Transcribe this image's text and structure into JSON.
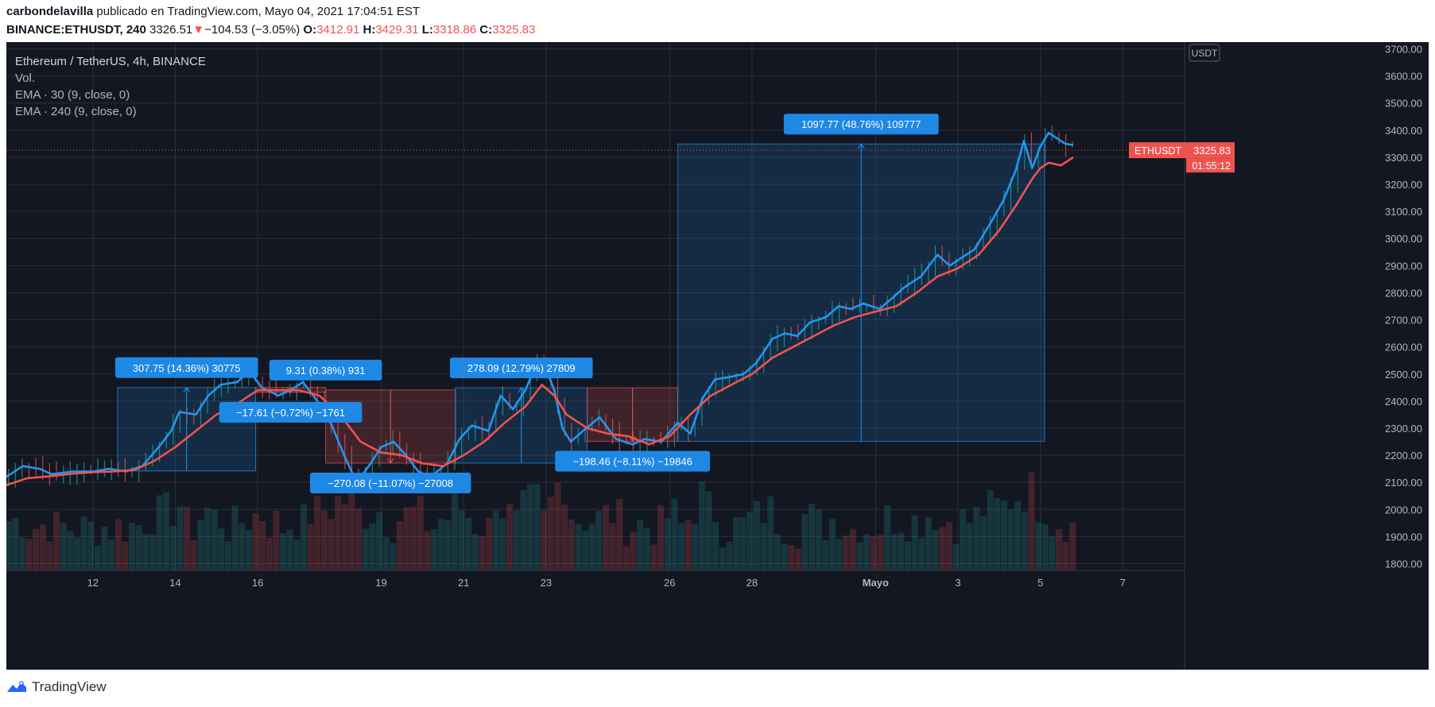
{
  "header": {
    "author": "carbondelavilla",
    "published": "publicado en TradingView.com, Mayo 04, 2021 17:04:51 EST",
    "symbol": "BINANCE:ETHUSDT, 240",
    "last": "3326.51",
    "arrow": "▼",
    "change": "−104.53 (−3.05%)",
    "o_label": "O:",
    "o_val": "3412.91",
    "h_label": "H:",
    "h_val": "3429.31",
    "l_label": "L:",
    "l_val": "3318.86",
    "c_label": "C:",
    "c_val": "3325.83"
  },
  "legend": {
    "title": "Ethereum / TetherUS, 4h, BINANCE",
    "vol": "Vol.",
    "ema1": "EMA · 30 (9, close, 0)",
    "ema2": "EMA · 240 (9, close, 0)"
  },
  "footer": {
    "brand": "TradingView"
  },
  "colors": {
    "background": "#131722",
    "grid": "#2a2e39",
    "text": "#b2b5be",
    "ema_fast": "#2196f3",
    "ema_slow": "#ef5350",
    "up": "#26a69a",
    "down": "#ef5350",
    "range_up": "#2196f3",
    "range_down": "#ef5350",
    "label": "#1e88e5"
  },
  "chart_data": {
    "type": "line",
    "y_range": [
      1775,
      3725
    ],
    "y_ticks": [
      {
        "v": 3700,
        "label": "3700.00"
      },
      {
        "v": 3600,
        "label": "3600.00"
      },
      {
        "v": 3500,
        "label": "3500.00"
      },
      {
        "v": 3400,
        "label": "3400.00"
      },
      {
        "v": 3300,
        "label": "3300.00"
      },
      {
        "v": 3200,
        "label": "3200.00"
      },
      {
        "v": 3100,
        "label": "3100.00"
      },
      {
        "v": 3000,
        "label": "3000.00"
      },
      {
        "v": 2900,
        "label": "2900.00"
      },
      {
        "v": 2800,
        "label": "2800.00"
      },
      {
        "v": 2700,
        "label": "2700.00"
      },
      {
        "v": 2600,
        "label": "2600.00"
      },
      {
        "v": 2500,
        "label": "2500.00"
      },
      {
        "v": 2400,
        "label": "2400.00"
      },
      {
        "v": 2300,
        "label": "2300.00"
      },
      {
        "v": 2200,
        "label": "2200.00"
      },
      {
        "v": 2100,
        "label": "2100.00"
      },
      {
        "v": 2000,
        "label": "2000.00"
      },
      {
        "v": 1900,
        "label": "1900.00"
      },
      {
        "v": 1800,
        "label": "1800.00"
      }
    ],
    "currency": "USDT",
    "x_range": [
      9.9,
      38.5
    ],
    "x_ticks": [
      {
        "d": 12,
        "label": "12"
      },
      {
        "d": 14,
        "label": "14"
      },
      {
        "d": 16,
        "label": "16"
      },
      {
        "d": 19,
        "label": "19"
      },
      {
        "d": 21,
        "label": "21"
      },
      {
        "d": 23,
        "label": "23"
      },
      {
        "d": 26,
        "label": "26"
      },
      {
        "d": 28,
        "label": "28"
      },
      {
        "d": 31,
        "label": "Mayo"
      },
      {
        "d": 33,
        "label": "3"
      },
      {
        "d": 35,
        "label": "5"
      },
      {
        "d": 37,
        "label": "7"
      }
    ],
    "price_label": {
      "symbol": "ETHUSDT",
      "price": "3325.83",
      "countdown": "01:55:12",
      "value": 3325.83
    },
    "series": [
      {
        "key": "ema_fast",
        "points": [
          [
            9.9,
            2120
          ],
          [
            10.3,
            2160
          ],
          [
            10.7,
            2150
          ],
          [
            11.0,
            2130
          ],
          [
            11.5,
            2140
          ],
          [
            12.0,
            2140
          ],
          [
            12.4,
            2150
          ],
          [
            12.8,
            2140
          ],
          [
            13.2,
            2160
          ],
          [
            13.6,
            2230
          ],
          [
            13.9,
            2290
          ],
          [
            14.1,
            2360
          ],
          [
            14.5,
            2350
          ],
          [
            14.8,
            2420
          ],
          [
            15.1,
            2460
          ],
          [
            15.5,
            2470
          ],
          [
            15.8,
            2510
          ],
          [
            16.1,
            2450
          ],
          [
            16.5,
            2420
          ],
          [
            16.8,
            2440
          ],
          [
            17.1,
            2470
          ],
          [
            17.5,
            2390
          ],
          [
            17.8,
            2310
          ],
          [
            18.1,
            2200
          ],
          [
            18.4,
            2100
          ],
          [
            18.7,
            2160
          ],
          [
            19.0,
            2230
          ],
          [
            19.3,
            2250
          ],
          [
            19.6,
            2200
          ],
          [
            19.9,
            2140
          ],
          [
            20.2,
            2120
          ],
          [
            20.6,
            2170
          ],
          [
            20.9,
            2260
          ],
          [
            21.2,
            2310
          ],
          [
            21.6,
            2290
          ],
          [
            21.9,
            2420
          ],
          [
            22.2,
            2370
          ],
          [
            22.5,
            2440
          ],
          [
            22.8,
            2550
          ],
          [
            23.0,
            2520
          ],
          [
            23.2,
            2440
          ],
          [
            23.4,
            2300
          ],
          [
            23.6,
            2250
          ],
          [
            23.9,
            2290
          ],
          [
            24.3,
            2340
          ],
          [
            24.7,
            2260
          ],
          [
            25.1,
            2240
          ],
          [
            25.4,
            2260
          ],
          [
            25.8,
            2250
          ],
          [
            26.2,
            2320
          ],
          [
            26.5,
            2280
          ],
          [
            26.8,
            2410
          ],
          [
            27.1,
            2480
          ],
          [
            27.5,
            2490
          ],
          [
            27.8,
            2500
          ],
          [
            28.1,
            2540
          ],
          [
            28.5,
            2630
          ],
          [
            28.8,
            2650
          ],
          [
            29.1,
            2640
          ],
          [
            29.4,
            2690
          ],
          [
            29.8,
            2710
          ],
          [
            30.1,
            2750
          ],
          [
            30.4,
            2740
          ],
          [
            30.7,
            2760
          ],
          [
            31.1,
            2740
          ],
          [
            31.4,
            2780
          ],
          [
            31.7,
            2820
          ],
          [
            32.1,
            2860
          ],
          [
            32.5,
            2940
          ],
          [
            32.8,
            2900
          ],
          [
            33.1,
            2930
          ],
          [
            33.4,
            2960
          ],
          [
            33.8,
            3060
          ],
          [
            34.1,
            3140
          ],
          [
            34.4,
            3250
          ],
          [
            34.6,
            3360
          ],
          [
            34.8,
            3260
          ],
          [
            35.0,
            3340
          ],
          [
            35.2,
            3390
          ],
          [
            35.4,
            3370
          ],
          [
            35.6,
            3350
          ],
          [
            35.8,
            3345
          ]
        ]
      },
      {
        "key": "ema_slow",
        "points": [
          [
            9.9,
            2090
          ],
          [
            10.4,
            2115
          ],
          [
            11.0,
            2123
          ],
          [
            11.5,
            2132
          ],
          [
            12.0,
            2137
          ],
          [
            12.5,
            2140
          ],
          [
            13.0,
            2145
          ],
          [
            13.5,
            2180
          ],
          [
            14.0,
            2230
          ],
          [
            14.5,
            2290
          ],
          [
            15.0,
            2350
          ],
          [
            15.5,
            2390
          ],
          [
            16.0,
            2440
          ],
          [
            16.5,
            2440
          ],
          [
            17.0,
            2440
          ],
          [
            17.5,
            2420
          ],
          [
            18.0,
            2350
          ],
          [
            18.5,
            2250
          ],
          [
            19.0,
            2210
          ],
          [
            19.5,
            2200
          ],
          [
            20.0,
            2170
          ],
          [
            20.5,
            2160
          ],
          [
            21.0,
            2200
          ],
          [
            21.5,
            2250
          ],
          [
            22.0,
            2320
          ],
          [
            22.5,
            2380
          ],
          [
            22.9,
            2460
          ],
          [
            23.2,
            2420
          ],
          [
            23.5,
            2350
          ],
          [
            24.0,
            2300
          ],
          [
            24.5,
            2280
          ],
          [
            25.0,
            2270
          ],
          [
            25.5,
            2240
          ],
          [
            26.0,
            2270
          ],
          [
            26.5,
            2350
          ],
          [
            27.0,
            2420
          ],
          [
            27.5,
            2460
          ],
          [
            28.0,
            2500
          ],
          [
            28.5,
            2560
          ],
          [
            29.0,
            2600
          ],
          [
            29.5,
            2640
          ],
          [
            30.0,
            2680
          ],
          [
            30.5,
            2710
          ],
          [
            31.0,
            2730
          ],
          [
            31.5,
            2750
          ],
          [
            32.0,
            2800
          ],
          [
            32.5,
            2860
          ],
          [
            33.0,
            2890
          ],
          [
            33.5,
            2940
          ],
          [
            34.0,
            3030
          ],
          [
            34.4,
            3120
          ],
          [
            34.8,
            3220
          ],
          [
            35.0,
            3260
          ],
          [
            35.2,
            3280
          ],
          [
            35.5,
            3270
          ],
          [
            35.8,
            3300
          ]
        ]
      }
    ],
    "ranges": [
      {
        "x1": 12.6,
        "x2": 15.95,
        "y_start": 2142,
        "y_end": 2450,
        "dir": "up",
        "label": "307.75 (14.36%) 30775"
      },
      {
        "x1": 15.95,
        "x2": 17.65,
        "y_start": 2450,
        "y_end": 2432,
        "dir": "down",
        "label": "−17.61 (−0.72%) −1761"
      },
      {
        "x1": 17.65,
        "x2": 17.65,
        "y_start": 2432,
        "y_end": 2441,
        "dir": "up",
        "label": "9.31 (0.38%) 931"
      },
      {
        "x1": 17.65,
        "x2": 20.8,
        "y_start": 2441,
        "y_end": 2171,
        "dir": "down",
        "label": "−270.08 (−11.07%) −27008"
      },
      {
        "x1": 20.8,
        "x2": 24.0,
        "y_start": 2171,
        "y_end": 2449,
        "dir": "up",
        "label": "278.09 (12.79%) 27809"
      },
      {
        "x1": 24.0,
        "x2": 26.2,
        "y_start": 2449,
        "y_end": 2251,
        "dir": "down",
        "label": "−198.46 (−8.11%) −19846"
      },
      {
        "x1": 26.2,
        "x2": 35.1,
        "y_start": 2251,
        "y_end": 3349,
        "dir": "up",
        "label": "1097.77 (48.76%) 109777"
      }
    ]
  }
}
